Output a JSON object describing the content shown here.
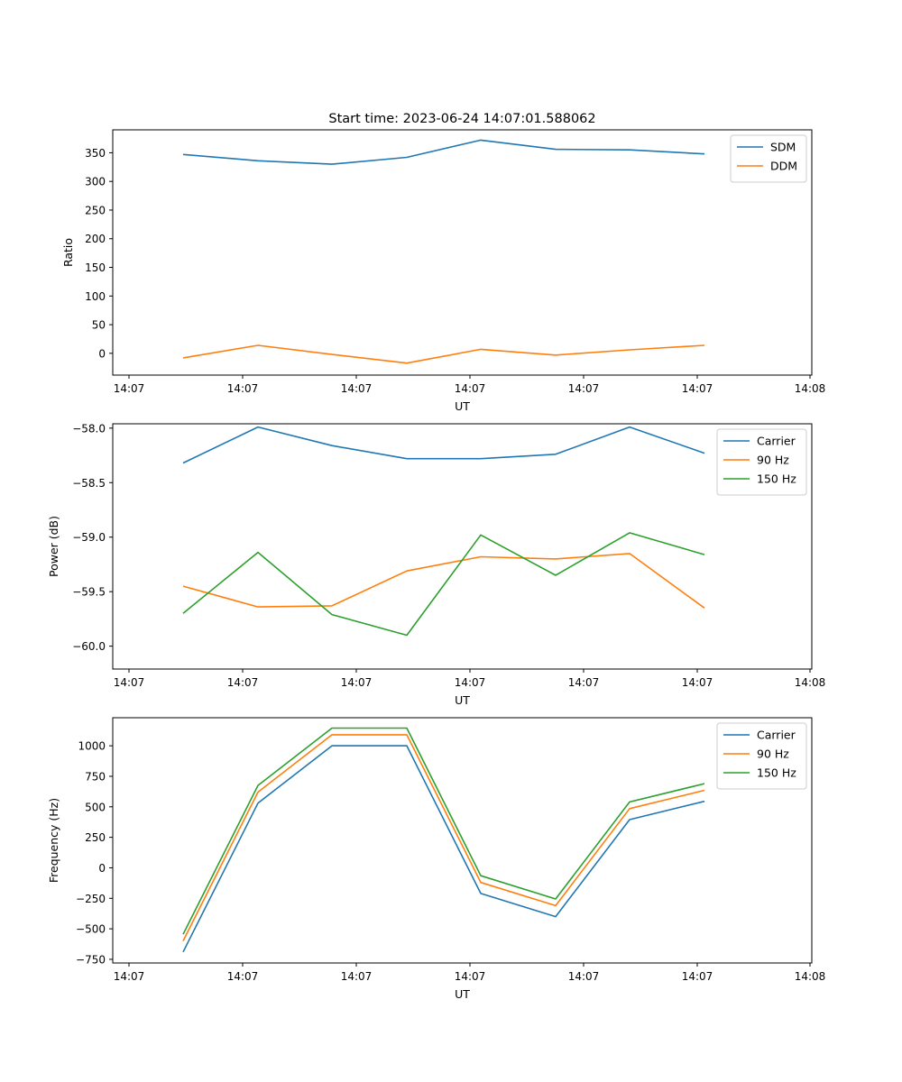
{
  "title": "Start time: 2023-06-24 14:07:01.588062",
  "chart_data": [
    {
      "type": "line",
      "xlabel": "UT",
      "ylabel": "Ratio",
      "x_tick_labels": [
        "14:07",
        "14:07",
        "14:07",
        "14:07",
        "14:07",
        "14:07",
        "14:08"
      ],
      "y_ticks": [
        0,
        50,
        100,
        150,
        200,
        250,
        300,
        350
      ],
      "y_tick_labels": [
        "0",
        "50",
        "100",
        "150",
        "200",
        "250",
        "300",
        "350"
      ],
      "ylim": [
        -38,
        390
      ],
      "legend": "upper right",
      "series": [
        {
          "name": "SDM",
          "color": "#1f77b4",
          "values": [
            347,
            336,
            330,
            342,
            372,
            356,
            355,
            348
          ]
        },
        {
          "name": "DDM",
          "color": "#ff7f0e",
          "values": [
            -8,
            14,
            -2,
            -17,
            7,
            -3,
            6,
            14
          ]
        }
      ]
    },
    {
      "type": "line",
      "xlabel": "UT",
      "ylabel": "Power (dB)",
      "x_tick_labels": [
        "14:07",
        "14:07",
        "14:07",
        "14:07",
        "14:07",
        "14:07",
        "14:08"
      ],
      "y_ticks": [
        -60.0,
        -59.5,
        -59.0,
        -58.5,
        -58.0
      ],
      "y_tick_labels": [
        "−60.0",
        "−59.5",
        "−59.0",
        "−58.5",
        "−58.0"
      ],
      "ylim": [
        -60.21,
        -57.96
      ],
      "legend": "upper right",
      "series": [
        {
          "name": "Carrier",
          "color": "#1f77b4",
          "values": [
            -58.32,
            -57.99,
            -58.16,
            -58.28,
            -58.28,
            -58.24,
            -57.99,
            -58.23
          ]
        },
        {
          "name": "90 Hz",
          "color": "#ff7f0e",
          "values": [
            -59.45,
            -59.64,
            -59.63,
            -59.31,
            -59.18,
            -59.2,
            -59.15,
            -59.65
          ]
        },
        {
          "name": "150 Hz",
          "color": "#2ca02c",
          "values": [
            -59.7,
            -59.14,
            -59.71,
            -59.9,
            -58.98,
            -59.35,
            -58.96,
            -59.16
          ]
        }
      ]
    },
    {
      "type": "line",
      "xlabel": "UT",
      "ylabel": "Frequency (Hz)",
      "x_tick_labels": [
        "14:07",
        "14:07",
        "14:07",
        "14:07",
        "14:07",
        "14:07",
        "14:08"
      ],
      "y_ticks": [
        -750,
        -500,
        -250,
        0,
        250,
        500,
        750,
        1000
      ],
      "y_tick_labels": [
        "−750",
        "−500",
        "−250",
        "0",
        "250",
        "500",
        "750",
        "1000"
      ],
      "ylim": [
        -780,
        1230
      ],
      "legend": "upper right",
      "series": [
        {
          "name": "Carrier",
          "color": "#1f77b4",
          "values": [
            -690,
            530,
            1000,
            1000,
            -210,
            -400,
            395,
            545
          ]
        },
        {
          "name": "90 Hz",
          "color": "#ff7f0e",
          "values": [
            -600,
            620,
            1090,
            1090,
            -120,
            -310,
            485,
            635
          ]
        },
        {
          "name": "150 Hz",
          "color": "#2ca02c",
          "values": [
            -545,
            675,
            1145,
            1145,
            -65,
            -255,
            540,
            690
          ]
        }
      ]
    }
  ]
}
